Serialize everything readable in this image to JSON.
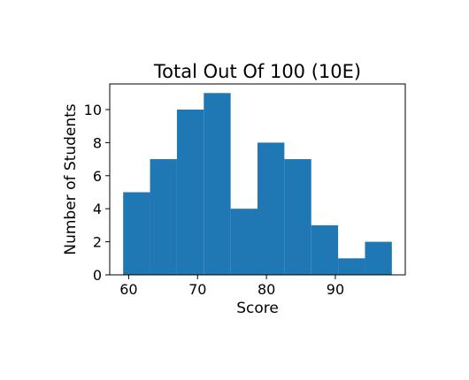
{
  "chart_data": {
    "type": "bar",
    "title": "Total Out Of 100 (10E)",
    "xlabel": "Score",
    "ylabel": "Number of Students",
    "bins": [
      {
        "start": 59.2,
        "end": 63.1,
        "count": 5
      },
      {
        "start": 63.1,
        "end": 67.0,
        "count": 7
      },
      {
        "start": 67.0,
        "end": 70.9,
        "count": 10
      },
      {
        "start": 70.9,
        "end": 74.8,
        "count": 11
      },
      {
        "start": 74.8,
        "end": 78.7,
        "count": 4
      },
      {
        "start": 78.7,
        "end": 82.6,
        "count": 8
      },
      {
        "start": 82.6,
        "end": 86.5,
        "count": 7
      },
      {
        "start": 86.5,
        "end": 90.4,
        "count": 3
      },
      {
        "start": 90.4,
        "end": 94.3,
        "count": 1
      },
      {
        "start": 94.3,
        "end": 98.2,
        "count": 2
      }
    ],
    "xticks": [
      60,
      70,
      80,
      90
    ],
    "yticks": [
      0,
      2,
      4,
      6,
      8,
      10
    ],
    "xlim": [
      57.25,
      100.15
    ],
    "ylim": [
      0,
      11.55
    ],
    "bar_color": "#1f77b4",
    "grid": false,
    "legend": "none"
  }
}
